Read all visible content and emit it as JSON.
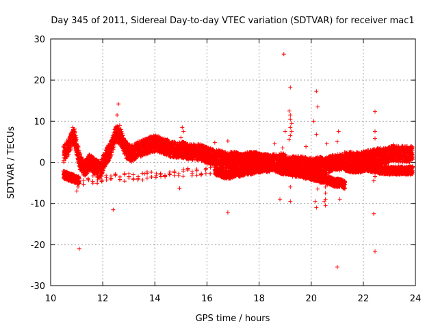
{
  "chart_data": {
    "type": "scatter",
    "title": "Day 345 of 2011, Sidereal Day-to-day VTEC variation (SDTVAR) for receiver mac1",
    "xlabel": "GPS time / hours",
    "ylabel": "SDTVAR / TECUs",
    "xlim": [
      10,
      24
    ],
    "ylim": [
      -30,
      30
    ],
    "xticks": [
      10,
      12,
      14,
      16,
      18,
      20,
      22,
      24
    ],
    "yticks": [
      -30,
      -20,
      -10,
      0,
      10,
      20,
      30
    ],
    "xtick_labels": [
      "10",
      "12",
      "14",
      "16",
      "18",
      "20",
      "22",
      "24"
    ],
    "ytick_labels": [
      "-30",
      "-20",
      "-10",
      "0",
      "10",
      "20",
      "30"
    ],
    "grid": true,
    "marker": "+",
    "color": "#ff0000",
    "bands": [
      {
        "name": "main trace",
        "x": [
          10.5,
          10.7,
          10.9,
          11.1,
          11.3,
          11.5,
          11.7,
          11.9,
          12.1,
          12.3,
          12.5,
          12.7,
          12.9,
          13.1,
          13.3,
          13.5,
          13.7,
          13.9,
          14.1,
          14.3,
          14.5,
          14.7,
          14.9,
          15.1,
          15.3,
          15.5,
          15.7,
          15.9,
          16.1,
          16.3,
          16.5,
          16.7,
          16.9,
          17.1,
          17.3,
          17.5,
          17.7,
          17.9,
          18.1,
          18.3,
          18.5,
          18.7,
          18.9,
          19.1,
          19.3,
          19.5,
          19.7,
          19.9,
          20.1,
          20.3,
          20.5,
          20.7,
          20.9,
          21.1,
          21.3,
          21.5,
          21.7,
          21.9,
          22.1,
          22.3,
          22.5,
          22.7,
          22.9,
          23.1,
          23.3,
          23.5,
          23.7,
          23.9
        ],
        "y": [
          2.0,
          4.0,
          6.5,
          0.5,
          -1.5,
          0.0,
          -1.0,
          -2.0,
          1.0,
          3.0,
          7.0,
          6.0,
          3.0,
          2.0,
          3.0,
          3.5,
          4.0,
          4.5,
          4.5,
          4.0,
          3.5,
          3.0,
          3.0,
          3.0,
          2.5,
          2.5,
          2.5,
          2.0,
          1.5,
          1.0,
          1.0,
          0.5,
          0.5,
          0.0,
          0.0,
          0.5,
          0.5,
          0.0,
          0.0,
          -0.5,
          0.0,
          0.0,
          0.5,
          -0.5,
          -0.5,
          -0.5,
          -0.5,
          -1.0,
          -1.0,
          -0.5,
          -1.0,
          -0.5,
          0.0,
          0.0,
          0.5,
          0.5,
          0.5,
          0.5,
          1.0,
          1.0,
          1.5,
          1.5,
          1.5,
          2.0,
          2.0,
          2.0,
          2.0,
          2.0
        ],
        "spread": 2.0
      },
      {
        "name": "lower trace",
        "x": [
          10.5,
          10.7,
          10.9,
          11.1,
          16.3,
          16.5,
          16.7,
          16.9,
          17.1,
          17.3,
          17.5,
          17.7,
          17.9,
          18.1,
          18.3,
          18.5,
          18.7,
          18.9,
          19.1,
          19.3,
          19.5,
          19.7,
          19.9,
          20.1,
          20.3,
          20.5,
          20.7,
          20.9,
          21.1,
          21.3
        ],
        "y": [
          -3.0,
          -3.5,
          -4.0,
          -4.5,
          -2.0,
          -2.5,
          -3.0,
          -3.0,
          -2.5,
          -2.5,
          -2.0,
          -2.0,
          -1.5,
          -1.5,
          -1.0,
          -1.0,
          -1.5,
          -2.0,
          -2.0,
          -2.5,
          -2.5,
          -3.0,
          -3.0,
          -3.5,
          -4.0,
          -4.0,
          -4.5,
          -5.0,
          -5.0,
          -5.5
        ],
        "spread": 1.0
      },
      {
        "name": "secondary trace",
        "x": [
          16.9,
          17.1,
          17.3,
          17.5,
          17.7,
          17.9,
          18.1,
          18.3,
          18.5,
          21.3,
          21.5,
          21.7,
          21.9,
          22.1,
          22.3,
          22.5,
          22.7,
          22.9,
          23.1,
          23.3,
          23.5,
          23.7,
          23.9
        ],
        "y": [
          1.5,
          1.5,
          1.0,
          1.0,
          1.5,
          1.5,
          1.0,
          1.0,
          0.5,
          -1.0,
          -1.5,
          -1.5,
          -1.5,
          -1.0,
          -1.5,
          -1.5,
          -2.0,
          -2.0,
          -2.0,
          -2.0,
          -2.0,
          -2.0,
          -2.0
        ],
        "spread": 1.0
      }
    ],
    "spike_points": [
      {
        "x": 10.85,
        "y": 8.5
      },
      {
        "x": 10.9,
        "y": 7.5
      },
      {
        "x": 10.95,
        "y": 6.5
      },
      {
        "x": 11.05,
        "y": -6.0
      },
      {
        "x": 11.0,
        "y": -7.0
      },
      {
        "x": 12.55,
        "y": 11.5
      },
      {
        "x": 12.6,
        "y": 14.2
      },
      {
        "x": 12.65,
        "y": 9.0
      },
      {
        "x": 12.7,
        "y": 8.0
      },
      {
        "x": 15.0,
        "y": 6.0
      },
      {
        "x": 15.05,
        "y": 8.5
      },
      {
        "x": 15.1,
        "y": 7.5
      },
      {
        "x": 19.15,
        "y": 12.5
      },
      {
        "x": 19.2,
        "y": 11.5
      },
      {
        "x": 19.2,
        "y": 10.5
      },
      {
        "x": 19.25,
        "y": 9.5
      },
      {
        "x": 19.2,
        "y": 8.5
      },
      {
        "x": 19.25,
        "y": 7.5
      },
      {
        "x": 19.2,
        "y": 6.5
      },
      {
        "x": 19.15,
        "y": 5.5
      },
      {
        "x": 19.0,
        "y": 7.5
      },
      {
        "x": 18.6,
        "y": 4.5
      },
      {
        "x": 18.9,
        "y": 3.5
      },
      {
        "x": 20.55,
        "y": -3.0
      },
      {
        "x": 20.55,
        "y": -4.5
      },
      {
        "x": 20.55,
        "y": -6.0
      },
      {
        "x": 20.55,
        "y": -7.5
      },
      {
        "x": 20.55,
        "y": -9.0
      },
      {
        "x": 20.55,
        "y": -10.5
      },
      {
        "x": 20.5,
        "y": -9.5
      },
      {
        "x": 22.45,
        "y": 7.5
      },
      {
        "x": 22.45,
        "y": 5.8
      },
      {
        "x": 22.4,
        "y": -4.5
      },
      {
        "x": 22.45,
        "y": -3.5
      }
    ],
    "outliers": [
      {
        "x": 11.1,
        "y": -21.0
      },
      {
        "x": 12.4,
        "y": -11.5
      },
      {
        "x": 13.6,
        "y": -2.8
      },
      {
        "x": 14.95,
        "y": -6.3
      },
      {
        "x": 16.3,
        "y": 4.8
      },
      {
        "x": 16.8,
        "y": -12.2
      },
      {
        "x": 16.8,
        "y": 5.2
      },
      {
        "x": 18.8,
        "y": -9.0
      },
      {
        "x": 18.95,
        "y": 26.3
      },
      {
        "x": 19.2,
        "y": 18.2
      },
      {
        "x": 19.2,
        "y": -9.5
      },
      {
        "x": 19.2,
        "y": -6.0
      },
      {
        "x": 20.1,
        "y": 10.0
      },
      {
        "x": 20.2,
        "y": 17.3
      },
      {
        "x": 20.25,
        "y": 13.5
      },
      {
        "x": 20.2,
        "y": 6.8
      },
      {
        "x": 20.15,
        "y": -9.5
      },
      {
        "x": 20.2,
        "y": -11.0
      },
      {
        "x": 20.25,
        "y": -6.5
      },
      {
        "x": 21.0,
        "y": -25.5
      },
      {
        "x": 21.05,
        "y": 7.5
      },
      {
        "x": 21.0,
        "y": 5.0
      },
      {
        "x": 21.1,
        "y": -9.0
      },
      {
        "x": 21.0,
        "y": -6.0
      },
      {
        "x": 22.45,
        "y": 12.3
      },
      {
        "x": 22.4,
        "y": -12.5
      },
      {
        "x": 22.45,
        "y": -21.7
      },
      {
        "x": 23.15,
        "y": 4.3
      },
      {
        "x": 20.6,
        "y": 4.5
      },
      {
        "x": 19.8,
        "y": 3.8
      }
    ]
  }
}
